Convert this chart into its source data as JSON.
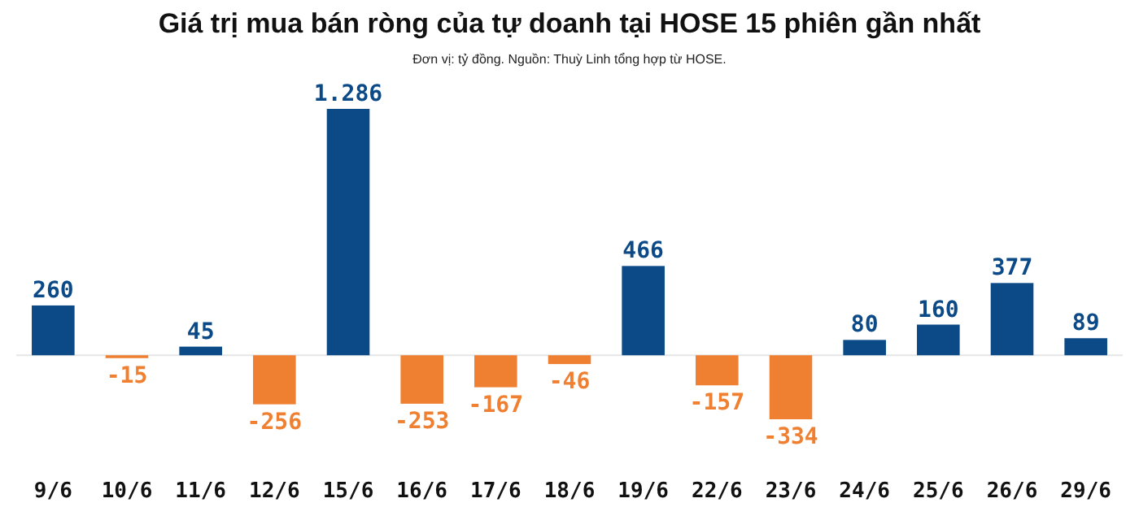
{
  "chart_data": {
    "type": "bar",
    "title": "Giá trị mua bán ròng của tự doanh tại HOSE 15 phiên gần nhất",
    "subtitle": "Đơn vị: tỷ đồng. Nguồn: Thuỳ Linh tổng hợp từ HOSE.",
    "categories": [
      "9/6",
      "10/6",
      "11/6",
      "12/6",
      "15/6",
      "16/6",
      "17/6",
      "18/6",
      "19/6",
      "22/6",
      "23/6",
      "24/6",
      "25/6",
      "26/6",
      "29/6"
    ],
    "values": [
      260,
      -15,
      45,
      -256,
      1286,
      -253,
      -167,
      -46,
      466,
      -157,
      -334,
      80,
      160,
      377,
      89
    ],
    "value_labels": [
      "260",
      "-15",
      "45",
      "-256",
      "1.286",
      "-253",
      "-167",
      "-46",
      "466",
      "-157",
      "-334",
      "80",
      "160",
      "377",
      "89"
    ],
    "colors": [
      "#0b4a87",
      "#ef8032",
      "#0b4a87",
      "#ef8032",
      "#0b4a87",
      "#ef8032",
      "#ef8032",
      "#ef8032",
      "#0b4a87",
      "#ef8032",
      "#ef8032",
      "#0b4a87",
      "#0b4a87",
      "#0b4a87",
      "#0b4a87"
    ]
  }
}
